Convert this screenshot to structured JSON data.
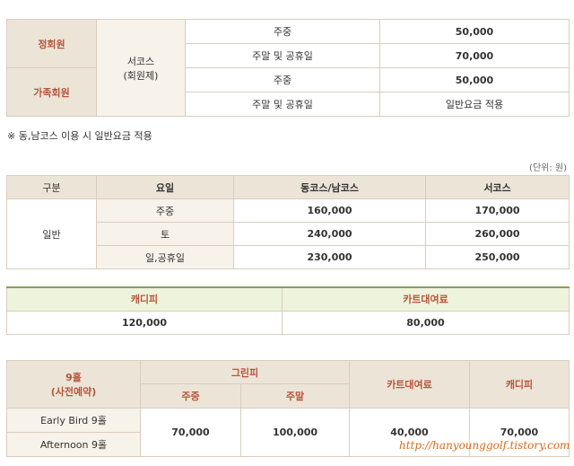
{
  "members": {
    "regular": "정회원",
    "family": "가족회원",
    "course": "서코스",
    "course_sub": "(회원제)",
    "rows": [
      {
        "day": "주중",
        "price": "50,000"
      },
      {
        "day": "주말 및 공휴일",
        "price": "70,000"
      },
      {
        "day": "주중",
        "price": "50,000"
      },
      {
        "day": "주말 및 공휴일",
        "price": "일반요금 적용"
      }
    ]
  },
  "note": "※ 동,남코스 이용 시 일반요금 적용",
  "unit": "(단위: 원)",
  "general": {
    "headers": [
      "구분",
      "요일",
      "동코스/남코스",
      "서코스"
    ],
    "category": "일반",
    "rows": [
      {
        "day": "주중",
        "east_south": "160,000",
        "west": "170,000"
      },
      {
        "day": "토",
        "east_south": "240,000",
        "west": "260,000"
      },
      {
        "day": "일,공휴일",
        "east_south": "230,000",
        "west": "250,000"
      }
    ]
  },
  "caddie_cart": {
    "headers": [
      "캐디피",
      "카트대여료"
    ],
    "values": [
      "120,000",
      "80,000"
    ]
  },
  "nine_hole": {
    "title": "9홀",
    "title_sub": "(사전예약)",
    "green_fee": "그린피",
    "weekday": "주중",
    "weekend": "주말",
    "cart": "카트대여료",
    "caddie": "캐디피",
    "rows": [
      "Early Bird 9홀",
      "Afternoon 9홀"
    ],
    "values": {
      "weekday": "70,000",
      "weekend": "100,000",
      "cart": "40,000",
      "caddie": "70,000"
    }
  },
  "watermark": "http://hanyounggolf.tistory.com"
}
